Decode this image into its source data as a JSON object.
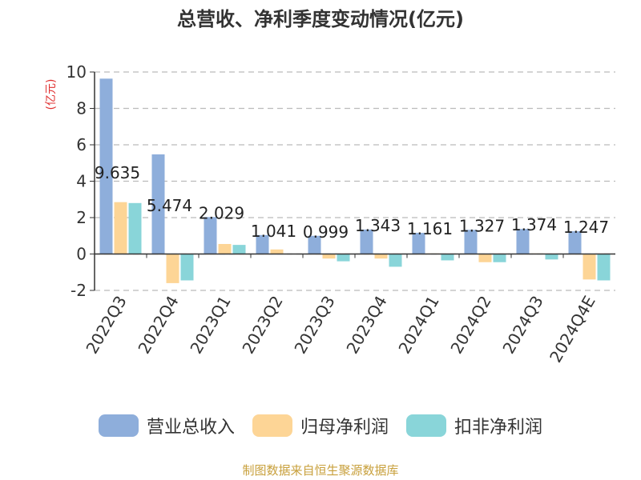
{
  "chart_data": {
    "type": "bar",
    "title": "总营收、净利季度变动情况(亿元)",
    "ylabel": "(亿元)",
    "ylim": [
      -2,
      10
    ],
    "yticks": [
      10,
      8,
      6,
      4,
      2,
      0,
      -2
    ],
    "grid": true,
    "legend_position": "bottom",
    "categories": [
      "2022Q3",
      "2022Q4",
      "2023Q1",
      "2023Q2",
      "2023Q3",
      "2023Q4",
      "2024Q1",
      "2024Q2",
      "2024Q3",
      "2024Q4E"
    ],
    "series": [
      {
        "name": "营业总收入",
        "color": "#8eaedb",
        "values": [
          9.635,
          5.474,
          2.029,
          1.041,
          0.999,
          1.343,
          1.161,
          1.327,
          1.374,
          1.247
        ],
        "labels": [
          "9.635",
          "5.474",
          "2.029",
          "1.041",
          "0.999",
          "1.343",
          "1.161",
          "1.327",
          "1.374",
          "1.247"
        ]
      },
      {
        "name": "归母净利润",
        "color": "#fdd596",
        "values": [
          2.85,
          -1.6,
          0.55,
          0.25,
          -0.25,
          -0.25,
          0.03,
          -0.45,
          0.03,
          -1.4
        ]
      },
      {
        "name": "扣非净利润",
        "color": "#89d5d9",
        "values": [
          2.8,
          -1.45,
          0.5,
          0.0,
          -0.4,
          -0.7,
          -0.35,
          -0.45,
          -0.3,
          -1.45
        ]
      }
    ]
  },
  "source_note": "制图数据来自恒生聚源数据库"
}
